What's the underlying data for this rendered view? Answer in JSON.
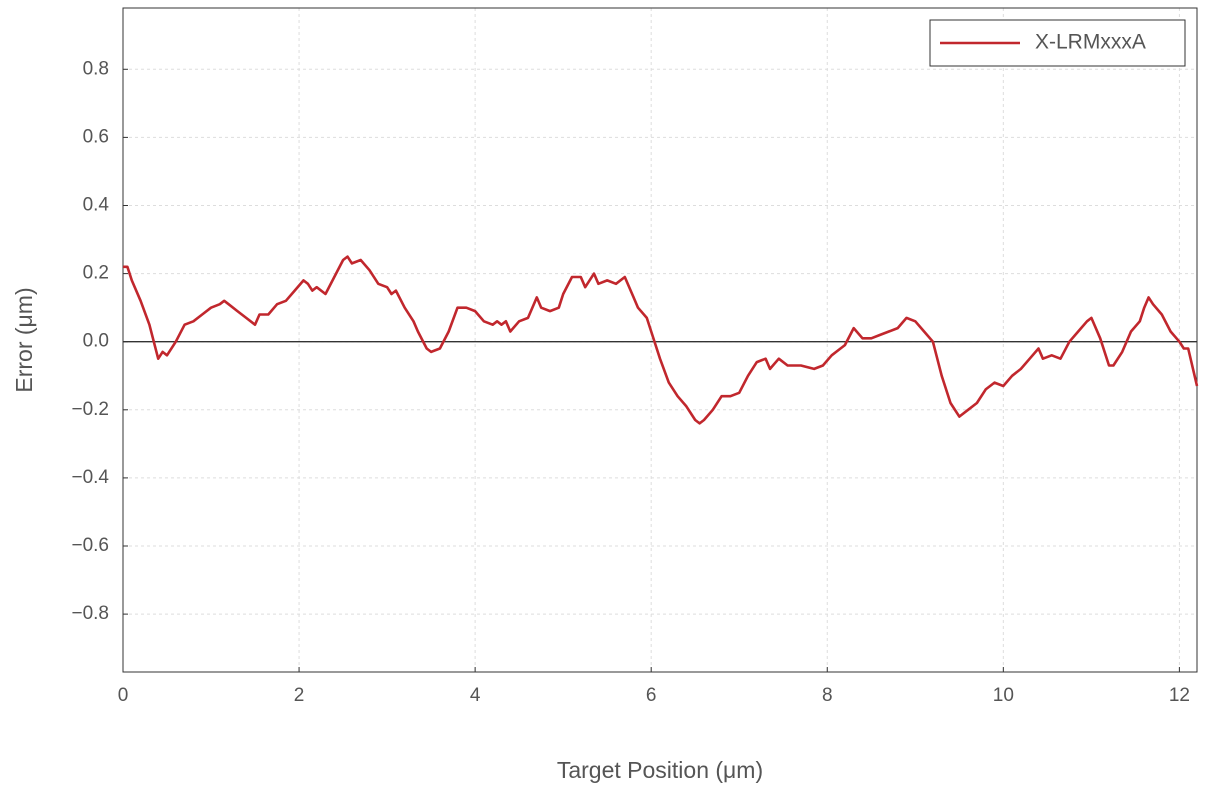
{
  "chart_data": {
    "type": "line",
    "x_label": "Target Position (μm)",
    "y_label": "Error (μm)",
    "x": [
      0,
      0.05,
      0.1,
      0.2,
      0.3,
      0.35,
      0.4,
      0.45,
      0.5,
      0.6,
      0.7,
      0.8,
      0.9,
      1.0,
      1.1,
      1.15,
      1.2,
      1.3,
      1.4,
      1.5,
      1.55,
      1.65,
      1.75,
      1.85,
      1.95,
      2.05,
      2.1,
      2.15,
      2.2,
      2.3,
      2.4,
      2.5,
      2.55,
      2.6,
      2.7,
      2.8,
      2.9,
      3.0,
      3.05,
      3.1,
      3.2,
      3.3,
      3.35,
      3.45,
      3.5,
      3.6,
      3.7,
      3.8,
      3.9,
      4.0,
      4.1,
      4.2,
      4.25,
      4.3,
      4.35,
      4.4,
      4.5,
      4.6,
      4.7,
      4.75,
      4.85,
      4.95,
      5.0,
      5.1,
      5.2,
      5.25,
      5.35,
      5.4,
      5.5,
      5.6,
      5.7,
      5.8,
      5.85,
      5.95,
      6.0,
      6.1,
      6.2,
      6.3,
      6.4,
      6.5,
      6.55,
      6.6,
      6.7,
      6.8,
      6.9,
      7.0,
      7.1,
      7.2,
      7.3,
      7.35,
      7.45,
      7.55,
      7.7,
      7.85,
      7.95,
      8.05,
      8.15,
      8.2,
      8.3,
      8.4,
      8.5,
      8.6,
      8.7,
      8.8,
      8.9,
      9.0,
      9.1,
      9.2,
      9.3,
      9.4,
      9.5,
      9.6,
      9.7,
      9.8,
      9.9,
      10.0,
      10.1,
      10.2,
      10.3,
      10.4,
      10.45,
      10.55,
      10.65,
      10.75,
      10.85,
      10.95,
      11.0,
      11.1,
      11.2,
      11.25,
      11.35,
      11.45,
      11.55,
      11.6,
      11.65,
      11.7,
      11.8,
      11.9,
      12.0,
      12.05,
      12.1,
      12.2
    ],
    "series": [
      {
        "name": "X-LRMxxxA",
        "color": "#c1272d",
        "values": [
          0.22,
          0.22,
          0.18,
          0.12,
          0.05,
          0.0,
          -0.05,
          -0.03,
          -0.04,
          0.0,
          0.05,
          0.06,
          0.08,
          0.1,
          0.11,
          0.12,
          0.11,
          0.09,
          0.07,
          0.05,
          0.08,
          0.08,
          0.11,
          0.12,
          0.15,
          0.18,
          0.17,
          0.15,
          0.16,
          0.14,
          0.19,
          0.24,
          0.25,
          0.23,
          0.24,
          0.21,
          0.17,
          0.16,
          0.14,
          0.15,
          0.1,
          0.06,
          0.03,
          -0.02,
          -0.03,
          -0.02,
          0.03,
          0.1,
          0.1,
          0.09,
          0.06,
          0.05,
          0.06,
          0.05,
          0.06,
          0.03,
          0.06,
          0.07,
          0.13,
          0.1,
          0.09,
          0.1,
          0.14,
          0.19,
          0.19,
          0.16,
          0.2,
          0.17,
          0.18,
          0.17,
          0.19,
          0.13,
          0.1,
          0.07,
          0.03,
          -0.05,
          -0.12,
          -0.16,
          -0.19,
          -0.23,
          -0.24,
          -0.23,
          -0.2,
          -0.16,
          -0.16,
          -0.15,
          -0.1,
          -0.06,
          -0.05,
          -0.08,
          -0.05,
          -0.07,
          -0.07,
          -0.08,
          -0.07,
          -0.04,
          -0.02,
          -0.01,
          0.04,
          0.01,
          0.01,
          0.02,
          0.03,
          0.04,
          0.07,
          0.06,
          0.03,
          0.0,
          -0.1,
          -0.18,
          -0.22,
          -0.2,
          -0.18,
          -0.14,
          -0.12,
          -0.13,
          -0.1,
          -0.08,
          -0.05,
          -0.02,
          -0.05,
          -0.04,
          -0.05,
          0.0,
          0.03,
          0.06,
          0.07,
          0.01,
          -0.07,
          -0.07,
          -0.03,
          0.03,
          0.06,
          0.1,
          0.13,
          0.11,
          0.08,
          0.03,
          0.0,
          -0.02,
          -0.02,
          -0.13
        ]
      }
    ],
    "xlim": [
      0,
      12.2
    ],
    "xticks": [
      0,
      2,
      4,
      6,
      8,
      10,
      12
    ],
    "ylim": [
      -0.97,
      0.98
    ],
    "yticks": [
      {
        "value": -0.8,
        "label": "−0.8"
      },
      {
        "value": -0.6,
        "label": "−0.6"
      },
      {
        "value": -0.4,
        "label": "−0.4"
      },
      {
        "value": -0.2,
        "label": "−0.2"
      },
      {
        "value": 0,
        "label": "0.0"
      },
      0.2,
      0.4,
      0.6,
      0.8
    ],
    "grid": true,
    "legend": "upper right"
  }
}
